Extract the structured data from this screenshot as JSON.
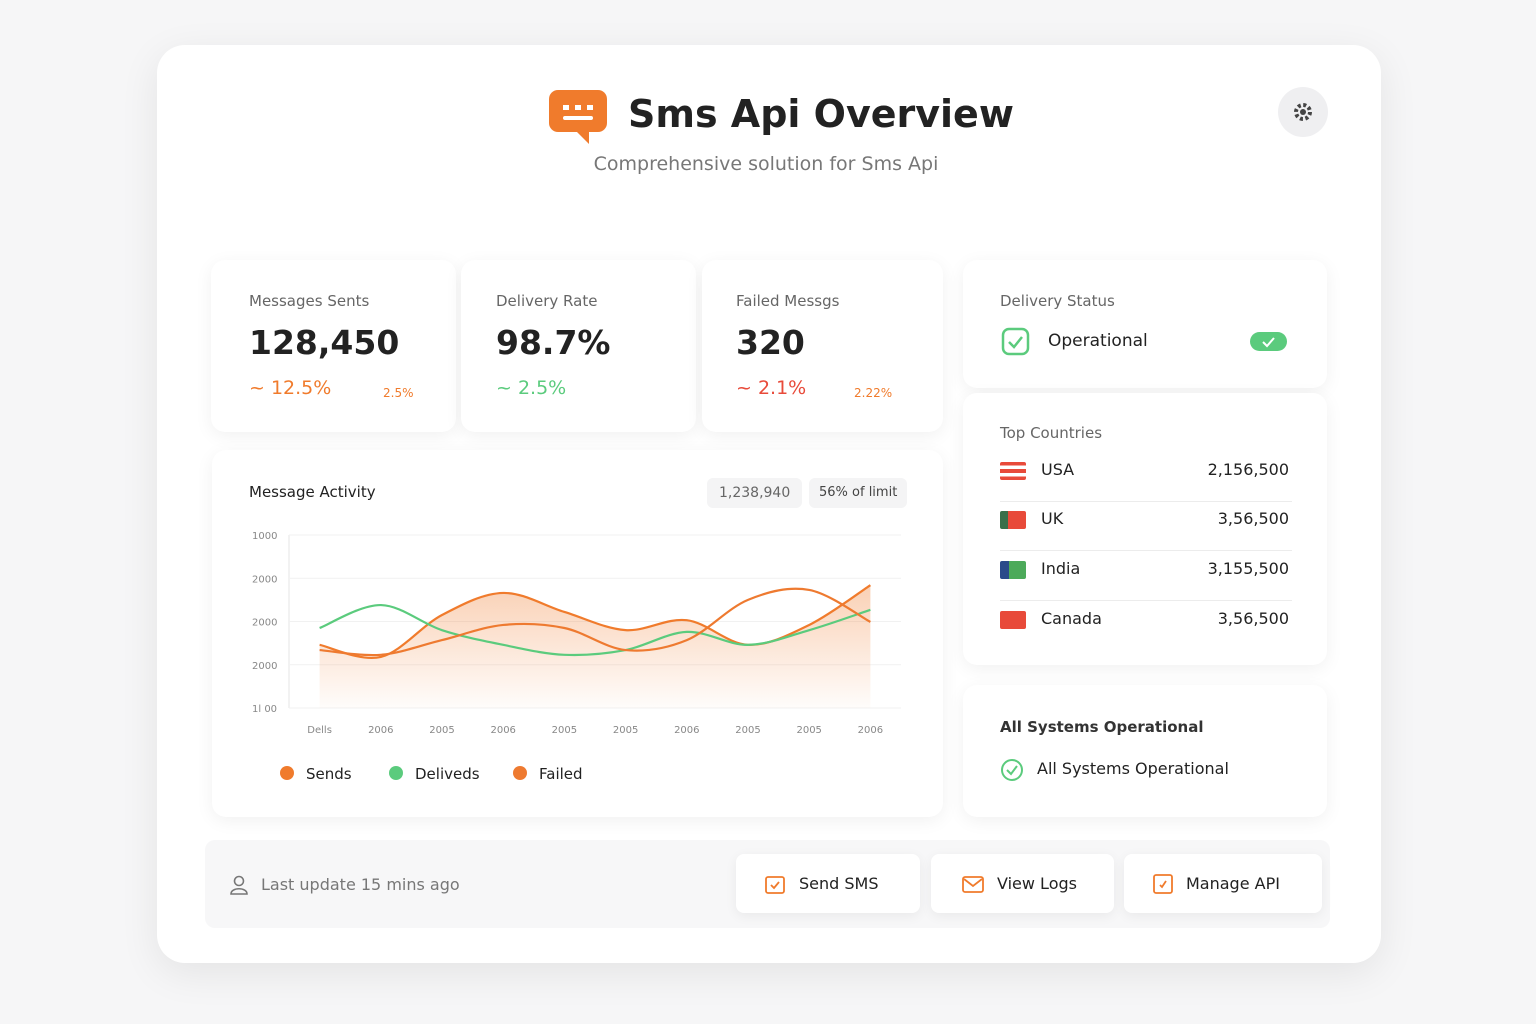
{
  "header": {
    "title": "Sms Api Overview",
    "subtitle": "Comprehensive solution for Sms Api"
  },
  "stats": [
    {
      "label": "Messages Sents",
      "value": "128,450",
      "change": "12.5%",
      "badge": "2.5%"
    },
    {
      "label": "Delivery Rate",
      "value": "98.7%",
      "change": "2.5%"
    },
    {
      "label": "Failed Messgs",
      "value": "320",
      "change": "2.1%",
      "badge": "2.22%"
    }
  ],
  "delivery_status": {
    "title": "Delivery Status",
    "status": "Operational"
  },
  "top_countries": {
    "title": "Top Countries",
    "rows": [
      {
        "name": "USA",
        "value": "2,156,500"
      },
      {
        "name": "UK",
        "value": "3,56,500"
      },
      {
        "name": "India",
        "value": "3,155,500"
      },
      {
        "name": "Canada",
        "value": "3,56,500"
      }
    ]
  },
  "systems": {
    "title": "All Systems Operational",
    "status": "All Systems Operational"
  },
  "activity": {
    "title": "Message Activity",
    "total": "1,238,940",
    "limit": "56% of limit"
  },
  "chart_data": {
    "type": "line",
    "grid": true,
    "categories": [
      "Dells",
      "2006",
      "2005",
      "2006",
      "2005",
      "2005",
      "2006",
      "2005",
      "2005",
      "2006"
    ],
    "ylim": [
      0,
      4
    ],
    "yticks": [
      {
        "value": 0,
        "label": "1l 00"
      },
      {
        "value": 1,
        "label": "2000"
      },
      {
        "value": 2,
        "label": "2000"
      },
      {
        "value": 3,
        "label": "2000"
      },
      {
        "value": 4,
        "label": "1000"
      }
    ],
    "series": [
      {
        "name": "Sends",
        "color": "#f07b2c",
        "values": [
          1.46,
          1.18,
          2.15,
          2.66,
          2.22,
          1.8,
          2.03,
          1.46,
          1.92,
          2.84
        ]
      },
      {
        "name": "Deliveds",
        "color": "#5bcb7d",
        "values": [
          1.85,
          2.38,
          1.8,
          1.46,
          1.23,
          1.34,
          1.76,
          1.46,
          1.8,
          2.27
        ]
      },
      {
        "name": "Failed",
        "color": "#ee7a30",
        "values": [
          1.34,
          1.23,
          1.57,
          1.92,
          1.85,
          1.34,
          1.57,
          2.5,
          2.73,
          1.99
        ]
      }
    ]
  },
  "footer": {
    "updated": "Last update 15 mins ago",
    "buttons": [
      "Send SMS",
      "View Logs",
      "Manage API"
    ]
  }
}
